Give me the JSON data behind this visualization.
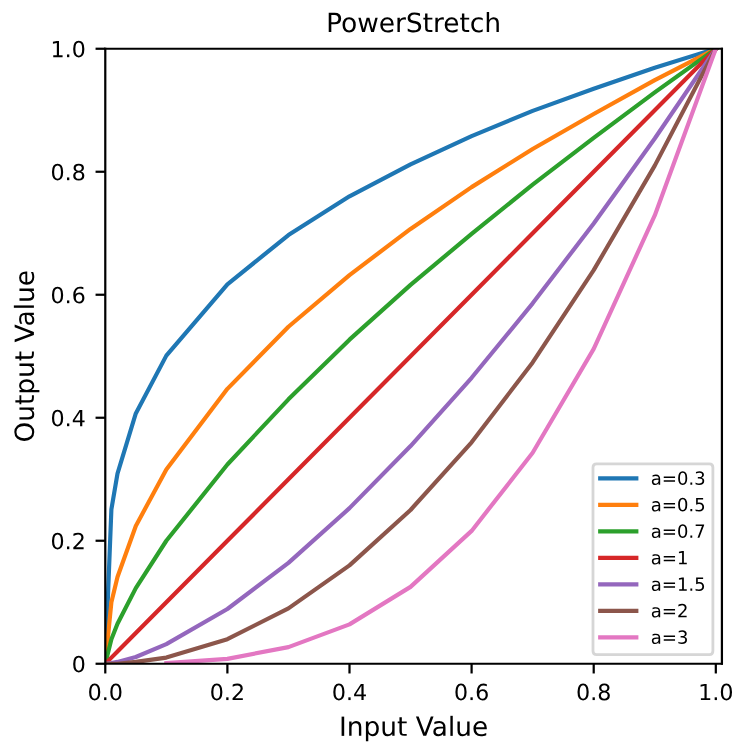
{
  "chart_data": {
    "type": "line",
    "title": "PowerStretch",
    "xlabel": "Input Value",
    "ylabel": "Output Value",
    "x": [
      0,
      0.01,
      0.02,
      0.05,
      0.1,
      0.2,
      0.3,
      0.4,
      0.5,
      0.6,
      0.7,
      0.8,
      0.9,
      1.0
    ],
    "series": [
      {
        "name": "a=0.3",
        "color": "#1f77b4",
        "values": [
          0,
          0.251,
          0.309,
          0.407,
          0.501,
          0.617,
          0.697,
          0.76,
          0.812,
          0.858,
          0.899,
          0.935,
          0.969,
          1.0
        ]
      },
      {
        "name": "a=0.5",
        "color": "#ff7f0e",
        "values": [
          0,
          0.1,
          0.141,
          0.224,
          0.316,
          0.447,
          0.548,
          0.632,
          0.707,
          0.775,
          0.837,
          0.894,
          0.949,
          1.0
        ]
      },
      {
        "name": "a=0.7",
        "color": "#2ca02c",
        "values": [
          0,
          0.04,
          0.065,
          0.123,
          0.2,
          0.324,
          0.43,
          0.527,
          0.616,
          0.699,
          0.779,
          0.855,
          0.929,
          1.0
        ]
      },
      {
        "name": "a=1",
        "color": "#d62728",
        "values": [
          0,
          0.01,
          0.02,
          0.05,
          0.1,
          0.2,
          0.3,
          0.4,
          0.5,
          0.6,
          0.7,
          0.8,
          0.9,
          1.0
        ]
      },
      {
        "name": "a=1.5",
        "color": "#9467bd",
        "values": [
          0,
          0.001,
          0.003,
          0.011,
          0.032,
          0.089,
          0.164,
          0.253,
          0.354,
          0.465,
          0.586,
          0.716,
          0.854,
          1.0
        ]
      },
      {
        "name": "a=2",
        "color": "#8c564b",
        "values": [
          0,
          0,
          0,
          0.003,
          0.01,
          0.04,
          0.09,
          0.16,
          0.25,
          0.36,
          0.49,
          0.64,
          0.81,
          1.0
        ]
      },
      {
        "name": "a=3",
        "color": "#e377c2",
        "values": [
          null,
          null,
          null,
          null,
          0.001,
          0.008,
          0.027,
          0.064,
          0.125,
          0.216,
          0.343,
          0.512,
          0.729,
          1.0
        ]
      }
    ],
    "xlim": [
      0,
      1.01
    ],
    "ylim": [
      0,
      1
    ],
    "xticks": [
      {
        "value": 0,
        "label": "0.0"
      },
      {
        "value": 0.2,
        "label": "0.2"
      },
      {
        "value": 0.4,
        "label": "0.4"
      },
      {
        "value": 0.6,
        "label": "0.6"
      },
      {
        "value": 0.8,
        "label": "0.8"
      },
      {
        "value": 1,
        "label": "1.0"
      }
    ],
    "yticks": [
      {
        "value": 0,
        "label": "0"
      },
      {
        "value": 0.2,
        "label": "0.2"
      },
      {
        "value": 0.4,
        "label": "0.4"
      },
      {
        "value": 0.6,
        "label": "0.6"
      },
      {
        "value": 0.8,
        "label": "0.8"
      },
      {
        "value": 1,
        "label": "1.0"
      }
    ],
    "legend": "bottom right",
    "grid": false
  }
}
